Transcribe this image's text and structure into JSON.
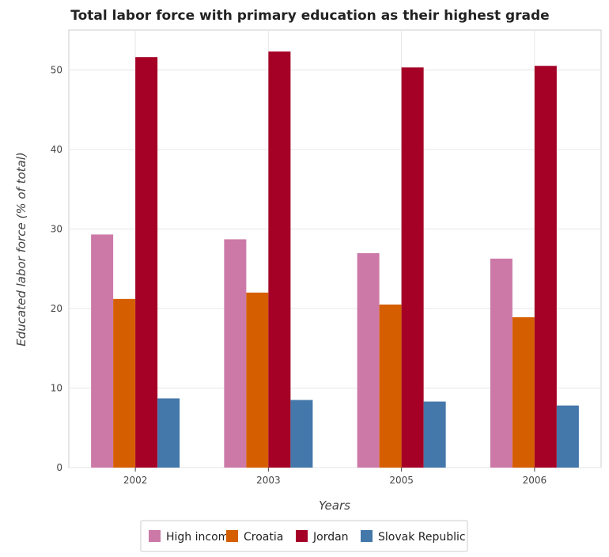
{
  "chart_data": {
    "type": "bar",
    "title": "Total labor force with primary education as their highest grade",
    "xlabel": "Years",
    "ylabel": "Educated labor force (% of total)",
    "categories": [
      "2002",
      "2003",
      "2005",
      "2006"
    ],
    "ylim": [
      0,
      55
    ],
    "yticks": [
      0,
      10,
      20,
      30,
      40,
      50
    ],
    "grid": true,
    "legend_position": "bottom",
    "series": [
      {
        "name": "High income",
        "color": "#cc79a7",
        "values": [
          29.3,
          28.7,
          26.95,
          26.27
        ]
      },
      {
        "name": "Croatia",
        "color": "#d55e00",
        "values": [
          21.2,
          22.0,
          20.5,
          18.9
        ]
      },
      {
        "name": "Jordan",
        "color": "#a50026",
        "values": [
          51.6,
          52.3,
          50.3,
          50.5
        ]
      },
      {
        "name": "Slovak Republic",
        "color": "#4477aa",
        "values": [
          8.7,
          8.5,
          8.3,
          7.8
        ]
      }
    ]
  }
}
